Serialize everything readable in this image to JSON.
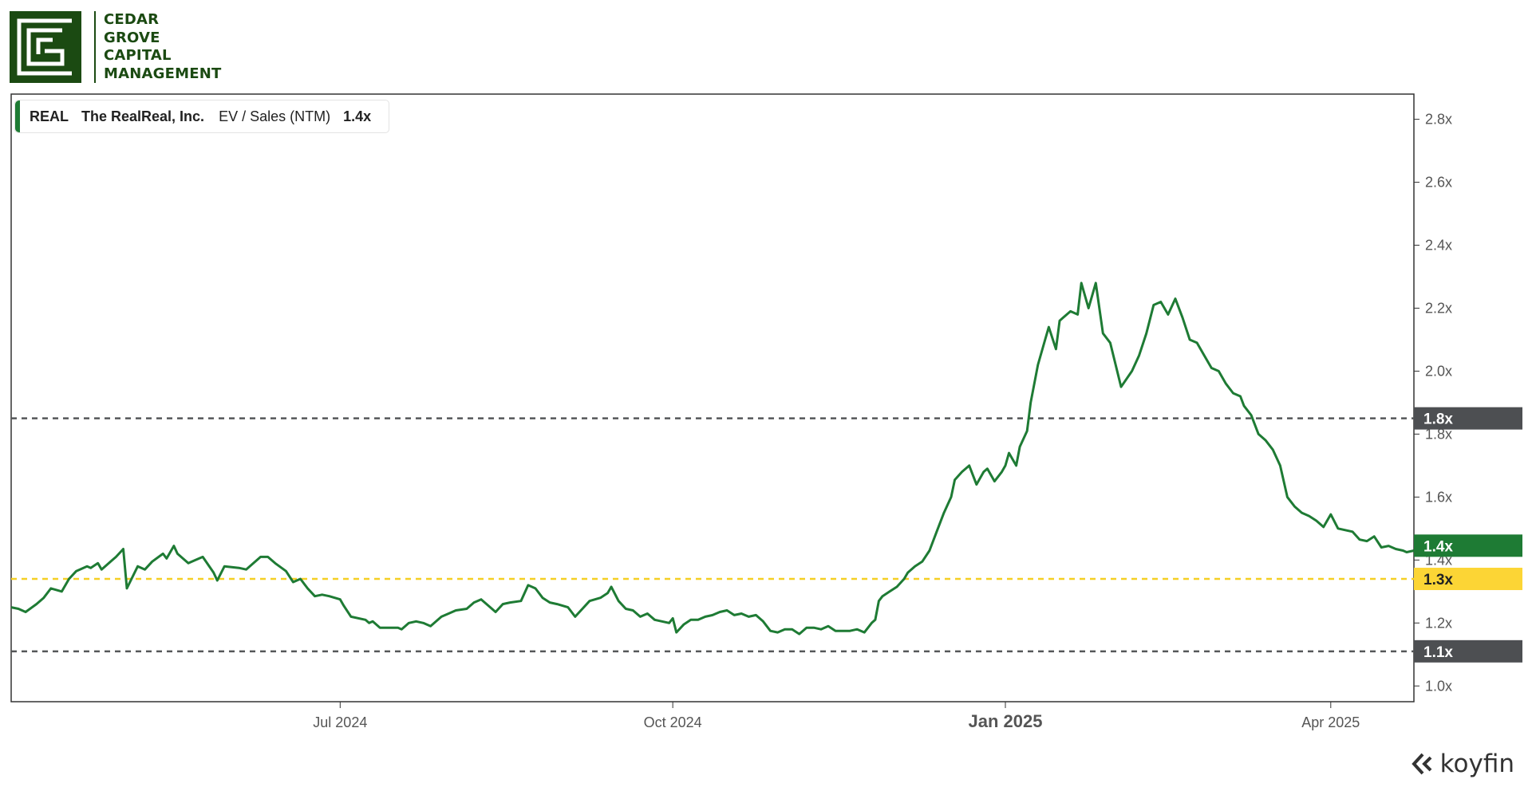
{
  "brand": {
    "lines": [
      "CEDAR",
      "GROVE",
      "CAPITAL",
      "MANAGEMENT"
    ],
    "color": "#1b4a12"
  },
  "legend": {
    "ticker": "REAL",
    "company": "The RealReal, Inc.",
    "metric": "EV / Sales (NTM)",
    "value": "1.4x"
  },
  "watermark": {
    "text": "koyfin",
    "icon": "koyfin-logo-icon"
  },
  "chart_data": {
    "type": "line",
    "title": "",
    "xlabel": "",
    "ylabel": "",
    "x_range": [
      "2024-04-01",
      "2025-04-24"
    ],
    "ylim": [
      0.95,
      2.88
    ],
    "y_ticks": [
      1.0,
      1.2,
      1.4,
      1.6,
      1.8,
      2.0,
      2.2,
      2.4,
      2.6,
      2.8
    ],
    "y_tick_format": "x",
    "x_ticks": [
      {
        "date": "2024-07-01",
        "label": "Jul 2024",
        "bold": false
      },
      {
        "date": "2024-10-01",
        "label": "Oct 2024",
        "bold": false
      },
      {
        "date": "2025-01-01",
        "label": "Jan 2025",
        "bold": true
      },
      {
        "date": "2025-04-01",
        "label": "Apr 2025",
        "bold": false
      }
    ],
    "grid": false,
    "legend_position": "top-left",
    "series": [
      {
        "name": "EV / Sales (NTM)",
        "color": "#1e7b34",
        "points": [
          [
            "2024-04-01",
            1.25
          ],
          [
            "2024-04-03",
            1.245
          ],
          [
            "2024-04-05",
            1.235
          ],
          [
            "2024-04-08",
            1.26
          ],
          [
            "2024-04-10",
            1.28
          ],
          [
            "2024-04-12",
            1.31
          ],
          [
            "2024-04-15",
            1.3
          ],
          [
            "2024-04-17",
            1.34
          ],
          [
            "2024-04-19",
            1.365
          ],
          [
            "2024-04-22",
            1.38
          ],
          [
            "2024-04-23",
            1.375
          ],
          [
            "2024-04-25",
            1.39
          ],
          [
            "2024-04-26",
            1.37
          ],
          [
            "2024-04-29",
            1.4
          ],
          [
            "2024-04-30",
            1.41
          ],
          [
            "2024-05-02",
            1.435
          ],
          [
            "2024-05-03",
            1.31
          ],
          [
            "2024-05-06",
            1.38
          ],
          [
            "2024-05-08",
            1.37
          ],
          [
            "2024-05-10",
            1.395
          ],
          [
            "2024-05-13",
            1.42
          ],
          [
            "2024-05-14",
            1.405
          ],
          [
            "2024-05-16",
            1.445
          ],
          [
            "2024-05-17",
            1.42
          ],
          [
            "2024-05-20",
            1.39
          ],
          [
            "2024-05-22",
            1.4
          ],
          [
            "2024-05-24",
            1.41
          ],
          [
            "2024-05-27",
            1.36
          ],
          [
            "2024-05-28",
            1.335
          ],
          [
            "2024-05-30",
            1.38
          ],
          [
            "2024-06-03",
            1.375
          ],
          [
            "2024-06-05",
            1.37
          ],
          [
            "2024-06-07",
            1.39
          ],
          [
            "2024-06-09",
            1.41
          ],
          [
            "2024-06-11",
            1.41
          ],
          [
            "2024-06-13",
            1.39
          ],
          [
            "2024-06-16",
            1.365
          ],
          [
            "2024-06-18",
            1.33
          ],
          [
            "2024-06-20",
            1.34
          ],
          [
            "2024-06-22",
            1.31
          ],
          [
            "2024-06-24",
            1.285
          ],
          [
            "2024-06-26",
            1.29
          ],
          [
            "2024-06-28",
            1.285
          ],
          [
            "2024-07-01",
            1.275
          ],
          [
            "2024-07-02",
            1.255
          ],
          [
            "2024-07-04",
            1.22
          ],
          [
            "2024-07-08",
            1.21
          ],
          [
            "2024-07-09",
            1.2
          ],
          [
            "2024-07-10",
            1.205
          ],
          [
            "2024-07-12",
            1.185
          ],
          [
            "2024-07-15",
            1.185
          ],
          [
            "2024-07-17",
            1.185
          ],
          [
            "2024-07-18",
            1.18
          ],
          [
            "2024-07-20",
            1.2
          ],
          [
            "2024-07-22",
            1.205
          ],
          [
            "2024-07-24",
            1.2
          ],
          [
            "2024-07-26",
            1.19
          ],
          [
            "2024-07-29",
            1.22
          ],
          [
            "2024-07-31",
            1.23
          ],
          [
            "2024-08-02",
            1.24
          ],
          [
            "2024-08-05",
            1.245
          ],
          [
            "2024-08-07",
            1.265
          ],
          [
            "2024-08-09",
            1.275
          ],
          [
            "2024-08-11",
            1.255
          ],
          [
            "2024-08-13",
            1.235
          ],
          [
            "2024-08-15",
            1.26
          ],
          [
            "2024-08-17",
            1.265
          ],
          [
            "2024-08-20",
            1.27
          ],
          [
            "2024-08-22",
            1.32
          ],
          [
            "2024-08-24",
            1.31
          ],
          [
            "2024-08-26",
            1.28
          ],
          [
            "2024-08-28",
            1.265
          ],
          [
            "2024-08-30",
            1.26
          ],
          [
            "2024-09-02",
            1.25
          ],
          [
            "2024-09-04",
            1.22
          ],
          [
            "2024-09-06",
            1.245
          ],
          [
            "2024-09-08",
            1.27
          ],
          [
            "2024-09-11",
            1.28
          ],
          [
            "2024-09-13",
            1.295
          ],
          [
            "2024-09-14",
            1.315
          ],
          [
            "2024-09-16",
            1.27
          ],
          [
            "2024-09-18",
            1.245
          ],
          [
            "2024-09-20",
            1.24
          ],
          [
            "2024-09-22",
            1.22
          ],
          [
            "2024-09-24",
            1.23
          ],
          [
            "2024-09-26",
            1.21
          ],
          [
            "2024-09-28",
            1.205
          ],
          [
            "2024-09-30",
            1.2
          ],
          [
            "2024-10-01",
            1.215
          ],
          [
            "2024-10-02",
            1.17
          ],
          [
            "2024-10-04",
            1.195
          ],
          [
            "2024-10-06",
            1.21
          ],
          [
            "2024-10-08",
            1.21
          ],
          [
            "2024-10-10",
            1.22
          ],
          [
            "2024-10-12",
            1.225
          ],
          [
            "2024-10-14",
            1.235
          ],
          [
            "2024-10-16",
            1.24
          ],
          [
            "2024-10-18",
            1.225
          ],
          [
            "2024-10-20",
            1.23
          ],
          [
            "2024-10-22",
            1.22
          ],
          [
            "2024-10-24",
            1.225
          ],
          [
            "2024-10-26",
            1.205
          ],
          [
            "2024-10-28",
            1.175
          ],
          [
            "2024-10-30",
            1.17
          ],
          [
            "2024-11-01",
            1.18
          ],
          [
            "2024-11-03",
            1.18
          ],
          [
            "2024-11-05",
            1.165
          ],
          [
            "2024-11-07",
            1.185
          ],
          [
            "2024-11-09",
            1.185
          ],
          [
            "2024-11-11",
            1.18
          ],
          [
            "2024-11-13",
            1.19
          ],
          [
            "2024-11-15",
            1.175
          ],
          [
            "2024-11-17",
            1.175
          ],
          [
            "2024-11-19",
            1.175
          ],
          [
            "2024-11-21",
            1.18
          ],
          [
            "2024-11-23",
            1.17
          ],
          [
            "2024-11-25",
            1.2
          ],
          [
            "2024-11-26",
            1.21
          ],
          [
            "2024-11-27",
            1.27
          ],
          [
            "2024-11-28",
            1.285
          ],
          [
            "2024-11-30",
            1.3
          ],
          [
            "2024-12-02",
            1.315
          ],
          [
            "2024-12-04",
            1.34
          ],
          [
            "2024-12-05",
            1.36
          ],
          [
            "2024-12-07",
            1.38
          ],
          [
            "2024-12-09",
            1.395
          ],
          [
            "2024-12-11",
            1.43
          ],
          [
            "2024-12-13",
            1.49
          ],
          [
            "2024-12-15",
            1.55
          ],
          [
            "2024-12-17",
            1.6
          ],
          [
            "2024-12-18",
            1.655
          ],
          [
            "2024-12-20",
            1.68
          ],
          [
            "2024-12-22",
            1.7
          ],
          [
            "2024-12-24",
            1.64
          ],
          [
            "2024-12-26",
            1.68
          ],
          [
            "2024-12-27",
            1.69
          ],
          [
            "2024-12-29",
            1.65
          ],
          [
            "2024-12-31",
            1.68
          ],
          [
            "2025-01-01",
            1.7
          ],
          [
            "2025-01-02",
            1.74
          ],
          [
            "2025-01-04",
            1.7
          ],
          [
            "2025-01-05",
            1.76
          ],
          [
            "2025-01-07",
            1.81
          ],
          [
            "2025-01-08",
            1.9
          ],
          [
            "2025-01-10",
            2.02
          ],
          [
            "2025-01-12",
            2.1
          ],
          [
            "2025-01-13",
            2.14
          ],
          [
            "2025-01-15",
            2.07
          ],
          [
            "2025-01-16",
            2.16
          ],
          [
            "2025-01-17",
            2.17
          ],
          [
            "2025-01-19",
            2.19
          ],
          [
            "2025-01-21",
            2.18
          ],
          [
            "2025-01-22",
            2.28
          ],
          [
            "2025-01-24",
            2.2
          ],
          [
            "2025-01-26",
            2.28
          ],
          [
            "2025-01-28",
            2.12
          ],
          [
            "2025-01-30",
            2.09
          ],
          [
            "2025-02-02",
            1.95
          ],
          [
            "2025-02-05",
            2.0
          ],
          [
            "2025-02-07",
            2.05
          ],
          [
            "2025-02-09",
            2.12
          ],
          [
            "2025-02-11",
            2.21
          ],
          [
            "2025-02-13",
            2.22
          ],
          [
            "2025-02-15",
            2.18
          ],
          [
            "2025-02-17",
            2.23
          ],
          [
            "2025-02-19",
            2.17
          ],
          [
            "2025-02-21",
            2.1
          ],
          [
            "2025-02-23",
            2.09
          ],
          [
            "2025-02-25",
            2.05
          ],
          [
            "2025-02-27",
            2.01
          ],
          [
            "2025-03-01",
            2.0
          ],
          [
            "2025-03-03",
            1.96
          ],
          [
            "2025-03-05",
            1.93
          ],
          [
            "2025-03-07",
            1.92
          ],
          [
            "2025-03-08",
            1.89
          ],
          [
            "2025-03-10",
            1.86
          ],
          [
            "2025-03-12",
            1.8
          ],
          [
            "2025-03-14",
            1.78
          ],
          [
            "2025-03-16",
            1.75
          ],
          [
            "2025-03-18",
            1.7
          ],
          [
            "2025-03-20",
            1.6
          ],
          [
            "2025-03-22",
            1.57
          ],
          [
            "2025-03-24",
            1.55
          ],
          [
            "2025-03-26",
            1.54
          ],
          [
            "2025-03-28",
            1.525
          ],
          [
            "2025-03-30",
            1.505
          ],
          [
            "2025-04-01",
            1.545
          ],
          [
            "2025-04-03",
            1.5
          ],
          [
            "2025-04-05",
            1.495
          ],
          [
            "2025-04-07",
            1.49
          ],
          [
            "2025-04-09",
            1.465
          ],
          [
            "2025-04-11",
            1.46
          ],
          [
            "2025-04-13",
            1.475
          ],
          [
            "2025-04-15",
            1.44
          ],
          [
            "2025-04-17",
            1.445
          ],
          [
            "2025-04-19",
            1.435
          ],
          [
            "2025-04-21",
            1.43
          ],
          [
            "2025-04-22",
            1.425
          ],
          [
            "2025-04-24",
            1.43
          ]
        ]
      }
    ],
    "reference_lines": [
      {
        "value": 1.85,
        "label": "1.8x",
        "style": "dashed",
        "color": "#555759",
        "label_bg": "#4d4f52",
        "label_color": "#ffffff"
      },
      {
        "value": 1.34,
        "label": "1.3x",
        "style": "dashed",
        "color": "#f5cf24",
        "label_bg": "#fcd535",
        "label_color": "#222222"
      },
      {
        "value": 1.11,
        "label": "1.1x",
        "style": "dashed",
        "color": "#555759",
        "label_bg": "#4d4f52",
        "label_color": "#ffffff"
      }
    ],
    "current_marker": {
      "value": 1.4,
      "label": "1.4x",
      "label_bg": "#1e7b34",
      "label_color": "#ffffff"
    }
  }
}
